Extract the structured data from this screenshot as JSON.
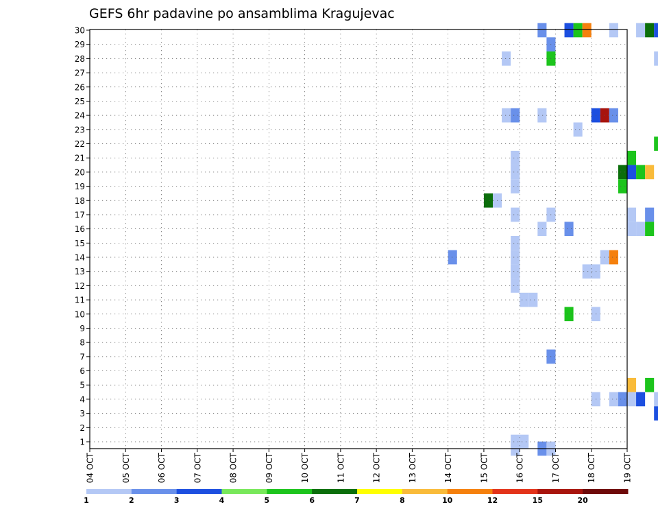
{
  "chart_data": {
    "type": "heatmap",
    "title": "GEFS 6hr padavine po ansamblima Kragujevac",
    "x_tick_labels": [
      "04 OCT",
      "05 OCT",
      "06 OCT",
      "07 OCT",
      "08 OCT",
      "09 OCT",
      "10 OCT",
      "11 OCT",
      "12 OCT",
      "13 OCT",
      "14 OCT",
      "15 OCT",
      "16 OCT",
      "17 OCT",
      "18 OCT",
      "19 OCT"
    ],
    "y_tick_labels": [
      "1",
      "2",
      "3",
      "4",
      "5",
      "6",
      "7",
      "8",
      "9",
      "10",
      "11",
      "12",
      "13",
      "14",
      "15",
      "16",
      "17",
      "18",
      "19",
      "20",
      "21",
      "22",
      "23",
      "24",
      "25",
      "26",
      "27",
      "28",
      "29",
      "30"
    ],
    "xlim_days": [
      0,
      15
    ],
    "ylim": [
      0,
      30
    ],
    "grid": true,
    "step_days": 0.25,
    "colorbar": {
      "labels": [
        "1",
        "2",
        "3",
        "4",
        "5",
        "6",
        "7",
        "8",
        "10",
        "12",
        "15",
        "20"
      ],
      "colors": [
        "#b4c8f5",
        "#6990ea",
        "#1c4fe0",
        "#78e85a",
        "#1cc41c",
        "#0b6e0b",
        "#ffff00",
        "#f9bb3a",
        "#f5800d",
        "#e3331a",
        "#a8140d",
        "#6e0a0a"
      ]
    },
    "cells": [
      [
        0,
        30,
        11.75,
        1
      ],
      [
        1,
        30,
        11.75,
        1
      ],
      [
        12,
        30,
        11.75,
        1
      ],
      [
        13,
        30,
        11.75,
        1
      ],
      [
        14,
        30,
        11.75,
        1
      ],
      [
        15,
        30,
        11.75,
        1
      ],
      [
        17,
        30,
        11.75,
        1
      ],
      [
        19,
        30,
        11.75,
        1
      ],
      [
        20,
        30,
        11.75,
        1
      ],
      [
        21,
        30,
        11.75,
        1
      ],
      [
        1,
        30,
        12.0,
        1
      ],
      [
        11,
        30,
        12.0,
        1
      ],
      [
        11,
        30,
        12.25,
        1
      ],
      [
        16,
        30,
        12.5,
        1
      ],
      [
        17,
        30,
        12.75,
        1
      ],
      [
        23,
        30,
        13.5,
        1
      ],
      [
        28,
        30,
        11.5,
        1
      ],
      [
        29,
        30,
        12.75,
        2
      ],
      [
        30,
        30,
        13.25,
        3
      ],
      [
        30,
        30,
        12.5,
        2
      ],
      [
        30,
        30,
        13.5,
        5
      ],
      [
        30,
        30,
        13.75,
        10
      ],
      [
        30,
        30,
        14.5,
        1
      ],
      [
        30,
        30,
        15.25,
        1
      ],
      [
        30,
        30,
        15.5,
        6
      ],
      [
        30,
        30,
        15.75,
        3
      ],
      [
        30,
        30,
        16.0,
        2
      ],
      [
        28,
        30,
        12.75,
        5
      ],
      [
        28,
        30,
        15.75,
        1
      ],
      [
        28,
        30,
        16.0,
        1
      ],
      [
        28,
        30,
        16.25,
        10
      ],
      [
        28,
        30,
        16.5,
        6
      ],
      [
        27,
        30,
        17.5,
        1
      ],
      [
        27,
        30,
        17.75,
        3
      ],
      [
        27,
        30,
        18.25,
        1
      ],
      [
        25,
        30,
        18.0,
        3
      ],
      [
        25,
        30,
        18.75,
        6
      ],
      [
        24,
        30,
        11.5,
        1
      ],
      [
        24,
        30,
        11.75,
        2
      ],
      [
        24,
        30,
        12.5,
        1
      ],
      [
        24,
        30,
        14.0,
        3
      ],
      [
        24,
        30,
        14.25,
        15
      ],
      [
        24,
        30,
        14.5,
        2
      ],
      [
        22,
        30,
        15.75,
        5
      ],
      [
        22,
        30,
        16.0,
        1
      ],
      [
        22,
        30,
        17.75,
        2
      ],
      [
        22,
        30,
        18.0,
        3
      ],
      [
        21,
        30,
        15.0,
        5
      ],
      [
        20,
        30,
        14.75,
        6
      ],
      [
        20,
        30,
        15.0,
        3
      ],
      [
        20,
        30,
        15.25,
        5
      ],
      [
        20,
        30,
        15.5,
        8
      ],
      [
        20,
        30,
        17.25,
        3
      ],
      [
        20,
        30,
        17.5,
        5
      ],
      [
        20,
        30,
        18.0,
        1
      ],
      [
        20,
        30,
        18.5,
        6
      ],
      [
        19,
        30,
        14.75,
        5
      ],
      [
        19,
        30,
        18.75,
        1
      ],
      [
        18,
        30,
        11.0,
        6
      ],
      [
        18,
        30,
        11.25,
        1
      ],
      [
        17,
        30,
        15.0,
        1
      ],
      [
        17,
        30,
        15.5,
        2
      ],
      [
        17,
        30,
        18.5,
        5
      ],
      [
        17,
        30,
        18.75,
        10
      ],
      [
        16,
        30,
        15.0,
        1
      ],
      [
        16,
        30,
        15.25,
        1
      ],
      [
        16,
        30,
        15.5,
        5
      ],
      [
        16,
        30,
        16.0,
        8
      ],
      [
        16,
        30,
        13.25,
        2
      ],
      [
        14,
        30,
        10.0,
        2
      ],
      [
        14,
        30,
        14.25,
        1
      ],
      [
        14,
        30,
        14.5,
        10
      ],
      [
        14,
        30,
        18.5,
        5
      ],
      [
        14,
        30,
        18.75,
        5
      ],
      [
        13,
        30,
        11.75,
        1
      ],
      [
        13,
        30,
        13.75,
        1
      ],
      [
        13,
        30,
        14.0,
        1
      ],
      [
        13,
        30,
        18.25,
        6
      ],
      [
        13,
        30,
        18.5,
        2
      ],
      [
        11,
        30,
        16.25,
        1
      ],
      [
        11,
        30,
        16.5,
        15
      ],
      [
        10,
        30,
        13.25,
        5
      ],
      [
        10,
        30,
        14.0,
        1
      ],
      [
        10,
        30,
        17.5,
        1
      ],
      [
        10,
        30,
        17.75,
        5
      ],
      [
        10,
        30,
        18.0,
        2
      ],
      [
        8,
        30,
        16.0,
        2
      ],
      [
        8,
        30,
        16.25,
        3
      ],
      [
        8,
        30,
        17.5,
        1
      ],
      [
        8,
        30,
        17.75,
        3
      ],
      [
        8,
        30,
        18.0,
        1
      ],
      [
        7,
        30,
        12.75,
        2
      ],
      [
        7,
        30,
        16.75,
        1
      ],
      [
        7,
        30,
        17.0,
        2
      ],
      [
        7,
        30,
        17.25,
        1
      ],
      [
        7,
        30,
        17.5,
        1
      ],
      [
        7,
        30,
        18.5,
        2
      ],
      [
        5,
        30,
        15.0,
        8
      ],
      [
        5,
        30,
        15.5,
        5
      ],
      [
        4,
        30,
        14.0,
        1
      ],
      [
        4,
        30,
        14.5,
        1
      ],
      [
        4,
        30,
        14.75,
        2
      ],
      [
        4,
        30,
        15.0,
        1
      ],
      [
        4,
        30,
        15.25,
        3
      ],
      [
        4,
        30,
        15.75,
        1
      ],
      [
        4,
        30,
        17.5,
        2
      ],
      [
        3,
        30,
        15.75,
        3
      ],
      [
        3,
        30,
        16.75,
        1
      ],
      [
        3,
        30,
        17.0,
        5
      ],
      [
        3,
        30,
        17.25,
        1
      ],
      [
        3,
        30,
        18.25,
        1
      ],
      [
        2,
        30,
        18.75,
        1
      ],
      [
        0,
        30,
        12.5,
        2
      ],
      [
        0,
        30,
        12.75,
        1
      ]
    ]
  }
}
